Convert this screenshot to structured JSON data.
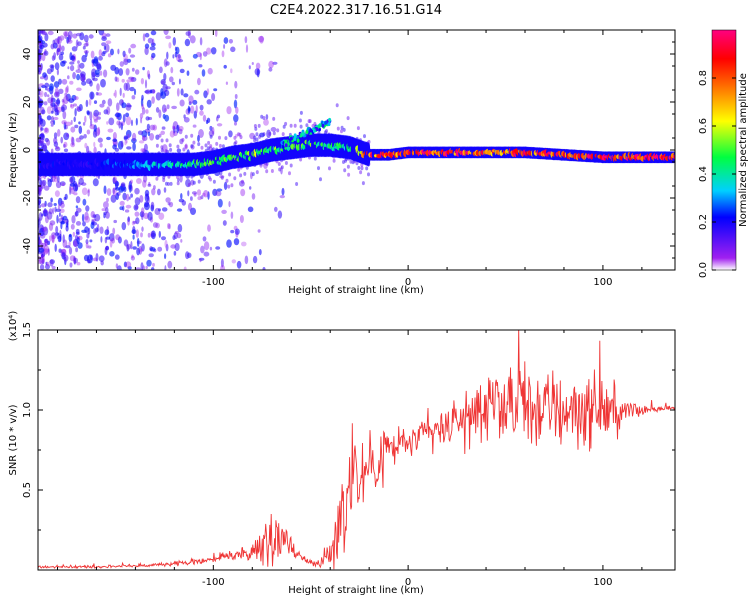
{
  "figure_title": "C2E4.2022.317.16.51.G14",
  "colors": {
    "snr_line": "#ef3535",
    "axes": "#000000",
    "background": "#ffffff"
  },
  "chart_data": [
    {
      "type": "heatmap",
      "title": "C2E4.2022.317.16.51.G14",
      "xlabel": "Height of straight line (km)",
      "ylabel": "Frequency (Hz)",
      "xlim": [
        -190,
        137
      ],
      "ylim": [
        -50,
        50
      ],
      "x_ticks": [
        -100,
        0,
        100
      ],
      "x_tick_labels": [
        "-100",
        "0",
        "100"
      ],
      "y_ticks": [
        -40,
        -20,
        0,
        20,
        40
      ],
      "y_tick_labels": [
        "-40",
        "-20",
        "0",
        "20",
        "40"
      ],
      "colorbar": {
        "label": "Normalized spectral amplitude",
        "range": [
          0.0,
          1.0
        ],
        "ticks": [
          0.0,
          0.2,
          0.4,
          0.6,
          0.8
        ],
        "tick_labels": [
          "0.0",
          "0.2",
          "0.4",
          "0.6",
          "0.8"
        ],
        "colormap": "rainbow (purple-blue-cyan-green-yellow-red-magenta)"
      },
      "ridge": {
        "description": "dominant frequency ridge",
        "x": [
          -190,
          -170,
          -150,
          -130,
          -110,
          -100,
          -90,
          -80,
          -70,
          -60,
          -50,
          -40,
          -30,
          -20,
          -10,
          0,
          20,
          40,
          60,
          80,
          100,
          120,
          137
        ],
        "y": [
          -6,
          -6,
          -6,
          -6,
          -6,
          -5,
          -3,
          -2,
          0,
          1,
          2,
          2,
          1,
          -2,
          -2,
          -1,
          -1,
          -1,
          -1,
          -2,
          -3,
          -3,
          -3
        ],
        "amplitude": [
          0.2,
          0.2,
          0.25,
          0.35,
          0.45,
          0.5,
          0.5,
          0.55,
          0.5,
          0.5,
          0.5,
          0.45,
          0.45,
          0.85,
          0.85,
          0.9,
          0.9,
          0.85,
          0.85,
          0.9,
          0.9,
          0.95,
          0.95
        ]
      },
      "scatter_region": {
        "description": "broadband weak noise at low heights",
        "x_range": [
          -190,
          -130
        ],
        "amplitude_range": [
          0.05,
          0.3
        ]
      }
    },
    {
      "type": "line",
      "xlabel": "Height of straight line (km)",
      "ylabel": "SNR (10 * v/v)",
      "y_multiplier": "(x10⁴)",
      "xlim": [
        -190,
        137
      ],
      "ylim": [
        0.0,
        1.5
      ],
      "x_ticks": [
        -100,
        0,
        100
      ],
      "x_tick_labels": [
        "-100",
        "0",
        "100"
      ],
      "y_ticks": [
        0.5,
        1.0,
        1.5
      ],
      "y_tick_labels": [
        "0.5",
        "1.0",
        "1.5"
      ],
      "series": [
        {
          "envelope_x": [
            -190,
            -160,
            -130,
            -110,
            -100,
            -90,
            -80,
            -75,
            -70,
            -65,
            -60,
            -55,
            -50,
            -45,
            -40,
            -35,
            -30,
            -25,
            -20,
            -15,
            -10,
            -5,
            0,
            10,
            20,
            30,
            40,
            50,
            60,
            70,
            80,
            90,
            100,
            110,
            120,
            125,
            130,
            137
          ],
          "mean": [
            0.02,
            0.02,
            0.03,
            0.05,
            0.07,
            0.09,
            0.12,
            0.15,
            0.25,
            0.2,
            0.15,
            0.08,
            0.05,
            0.03,
            0.1,
            0.3,
            0.5,
            0.6,
            0.65,
            0.7,
            0.75,
            0.78,
            0.8,
            0.85,
            0.9,
            0.95,
            1.0,
            1.0,
            1.02,
            1.0,
            1.0,
            1.0,
            1.0,
            0.98,
            1.0,
            1.01,
            1.01,
            1.01
          ],
          "spread": [
            0.01,
            0.01,
            0.01,
            0.02,
            0.03,
            0.04,
            0.08,
            0.12,
            0.22,
            0.12,
            0.08,
            0.04,
            0.03,
            0.03,
            0.1,
            0.3,
            0.35,
            0.3,
            0.25,
            0.25,
            0.2,
            0.15,
            0.12,
            0.12,
            0.15,
            0.2,
            0.22,
            0.25,
            0.3,
            0.3,
            0.3,
            0.28,
            0.22,
            0.12,
            0.06,
            0.03,
            0.02,
            0.02
          ]
        }
      ]
    }
  ]
}
